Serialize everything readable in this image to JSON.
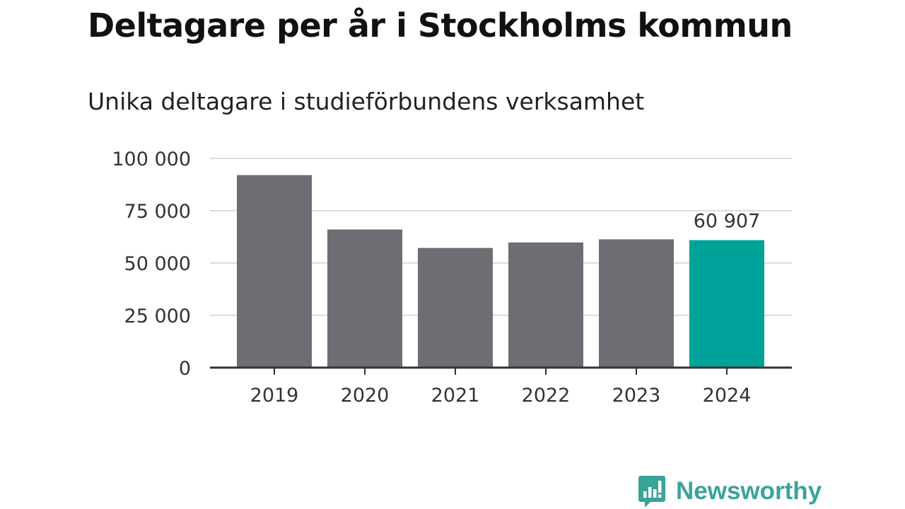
{
  "chart_data": {
    "type": "bar",
    "title": "Deltagare per år i Stockholms kommun",
    "subtitle": "Unika deltagare i studieförbundens verksamhet",
    "categories": [
      "2019",
      "2020",
      "2021",
      "2022",
      "2023",
      "2024"
    ],
    "values": [
      92000,
      66000,
      57200,
      59800,
      61300,
      60907
    ],
    "ylim": [
      0,
      100000
    ],
    "y_ticks": [
      0,
      25000,
      50000,
      75000,
      100000
    ],
    "y_tick_labels": [
      "0",
      "25 000",
      "50 000",
      "75 000",
      "100 000"
    ],
    "grid": true,
    "highlight_index": 5,
    "highlight_label": "60 907",
    "colors": {
      "bar": "#6e6d73",
      "highlight": "#00a39a",
      "grid": "#dcdcdc",
      "axis": "#333333"
    }
  },
  "brand": {
    "name": "Newsworthy",
    "icon": "newsworthy-logo-icon",
    "color": "#3aa39a"
  }
}
